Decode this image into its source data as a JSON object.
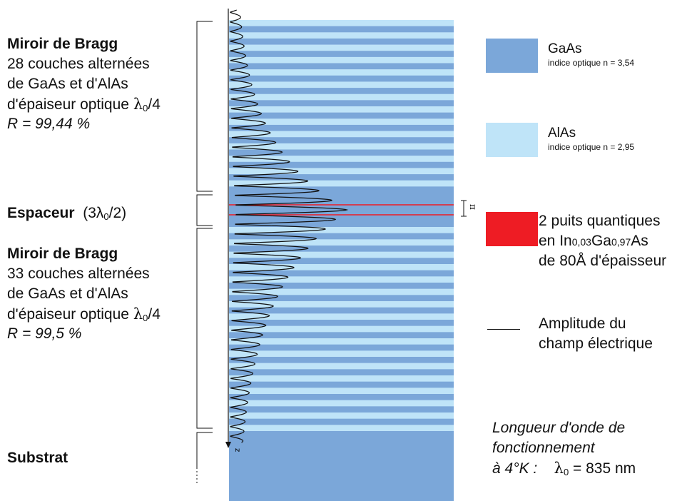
{
  "left_labels": {
    "mirror_top": {
      "title": "Miroir de Bragg",
      "line1": "28 couches alternées",
      "line2": "de GaAs et d'AlAs",
      "line3": "d'épaiseur optique",
      "lambda_expr": "λ",
      "lambda_sub": "0",
      "lambda_div": "/4",
      "reflectivity": "R = 99,44 %"
    },
    "spacer": {
      "title": "Espaceur",
      "expr_open": "(3λ",
      "expr_sub": "0",
      "expr_close": "/2)"
    },
    "mirror_bottom": {
      "title": "Miroir de Bragg",
      "line1": "33 couches alternées",
      "line2": "de GaAs et d'AlAs",
      "line3": "d'épaiseur optique",
      "lambda_expr": "λ",
      "lambda_sub": "0",
      "lambda_div": "/4",
      "reflectivity": "R = 99,5 %"
    },
    "substrate": {
      "title": "Substrat"
    }
  },
  "axis": {
    "label": "z"
  },
  "well_marker": {
    "label": "π"
  },
  "legend": {
    "gaas": {
      "name": "GaAs",
      "index": "indice optique n = 3,54",
      "color": "#7ba7d9"
    },
    "alas": {
      "name": "AlAs",
      "index": "indice optique n = 2,95",
      "color": "#bfe4f8"
    },
    "wells": {
      "line1": "2 puits quantiques",
      "line2_prefix": "en In",
      "line2_sub1": "0,03",
      "line2_mid": "Ga",
      "line2_sub2": "0,97",
      "line2_suffix": "As",
      "line3": "de 80Å d'épaisseur",
      "color": "#ee1c24"
    },
    "field": {
      "line1": "Amplitude du",
      "line2": "champ électrique"
    }
  },
  "wavelength_note": {
    "line1": "Longueur d'onde de",
    "line2": "fonctionnement",
    "line3_prefix": "à 4°K :",
    "lambda": "λ",
    "lambda_sub": "0",
    "value": "= 835 nm"
  },
  "structure": {
    "top_mirror_layers": 28,
    "bottom_mirror_layers": 33,
    "quantum_wells": 2
  }
}
